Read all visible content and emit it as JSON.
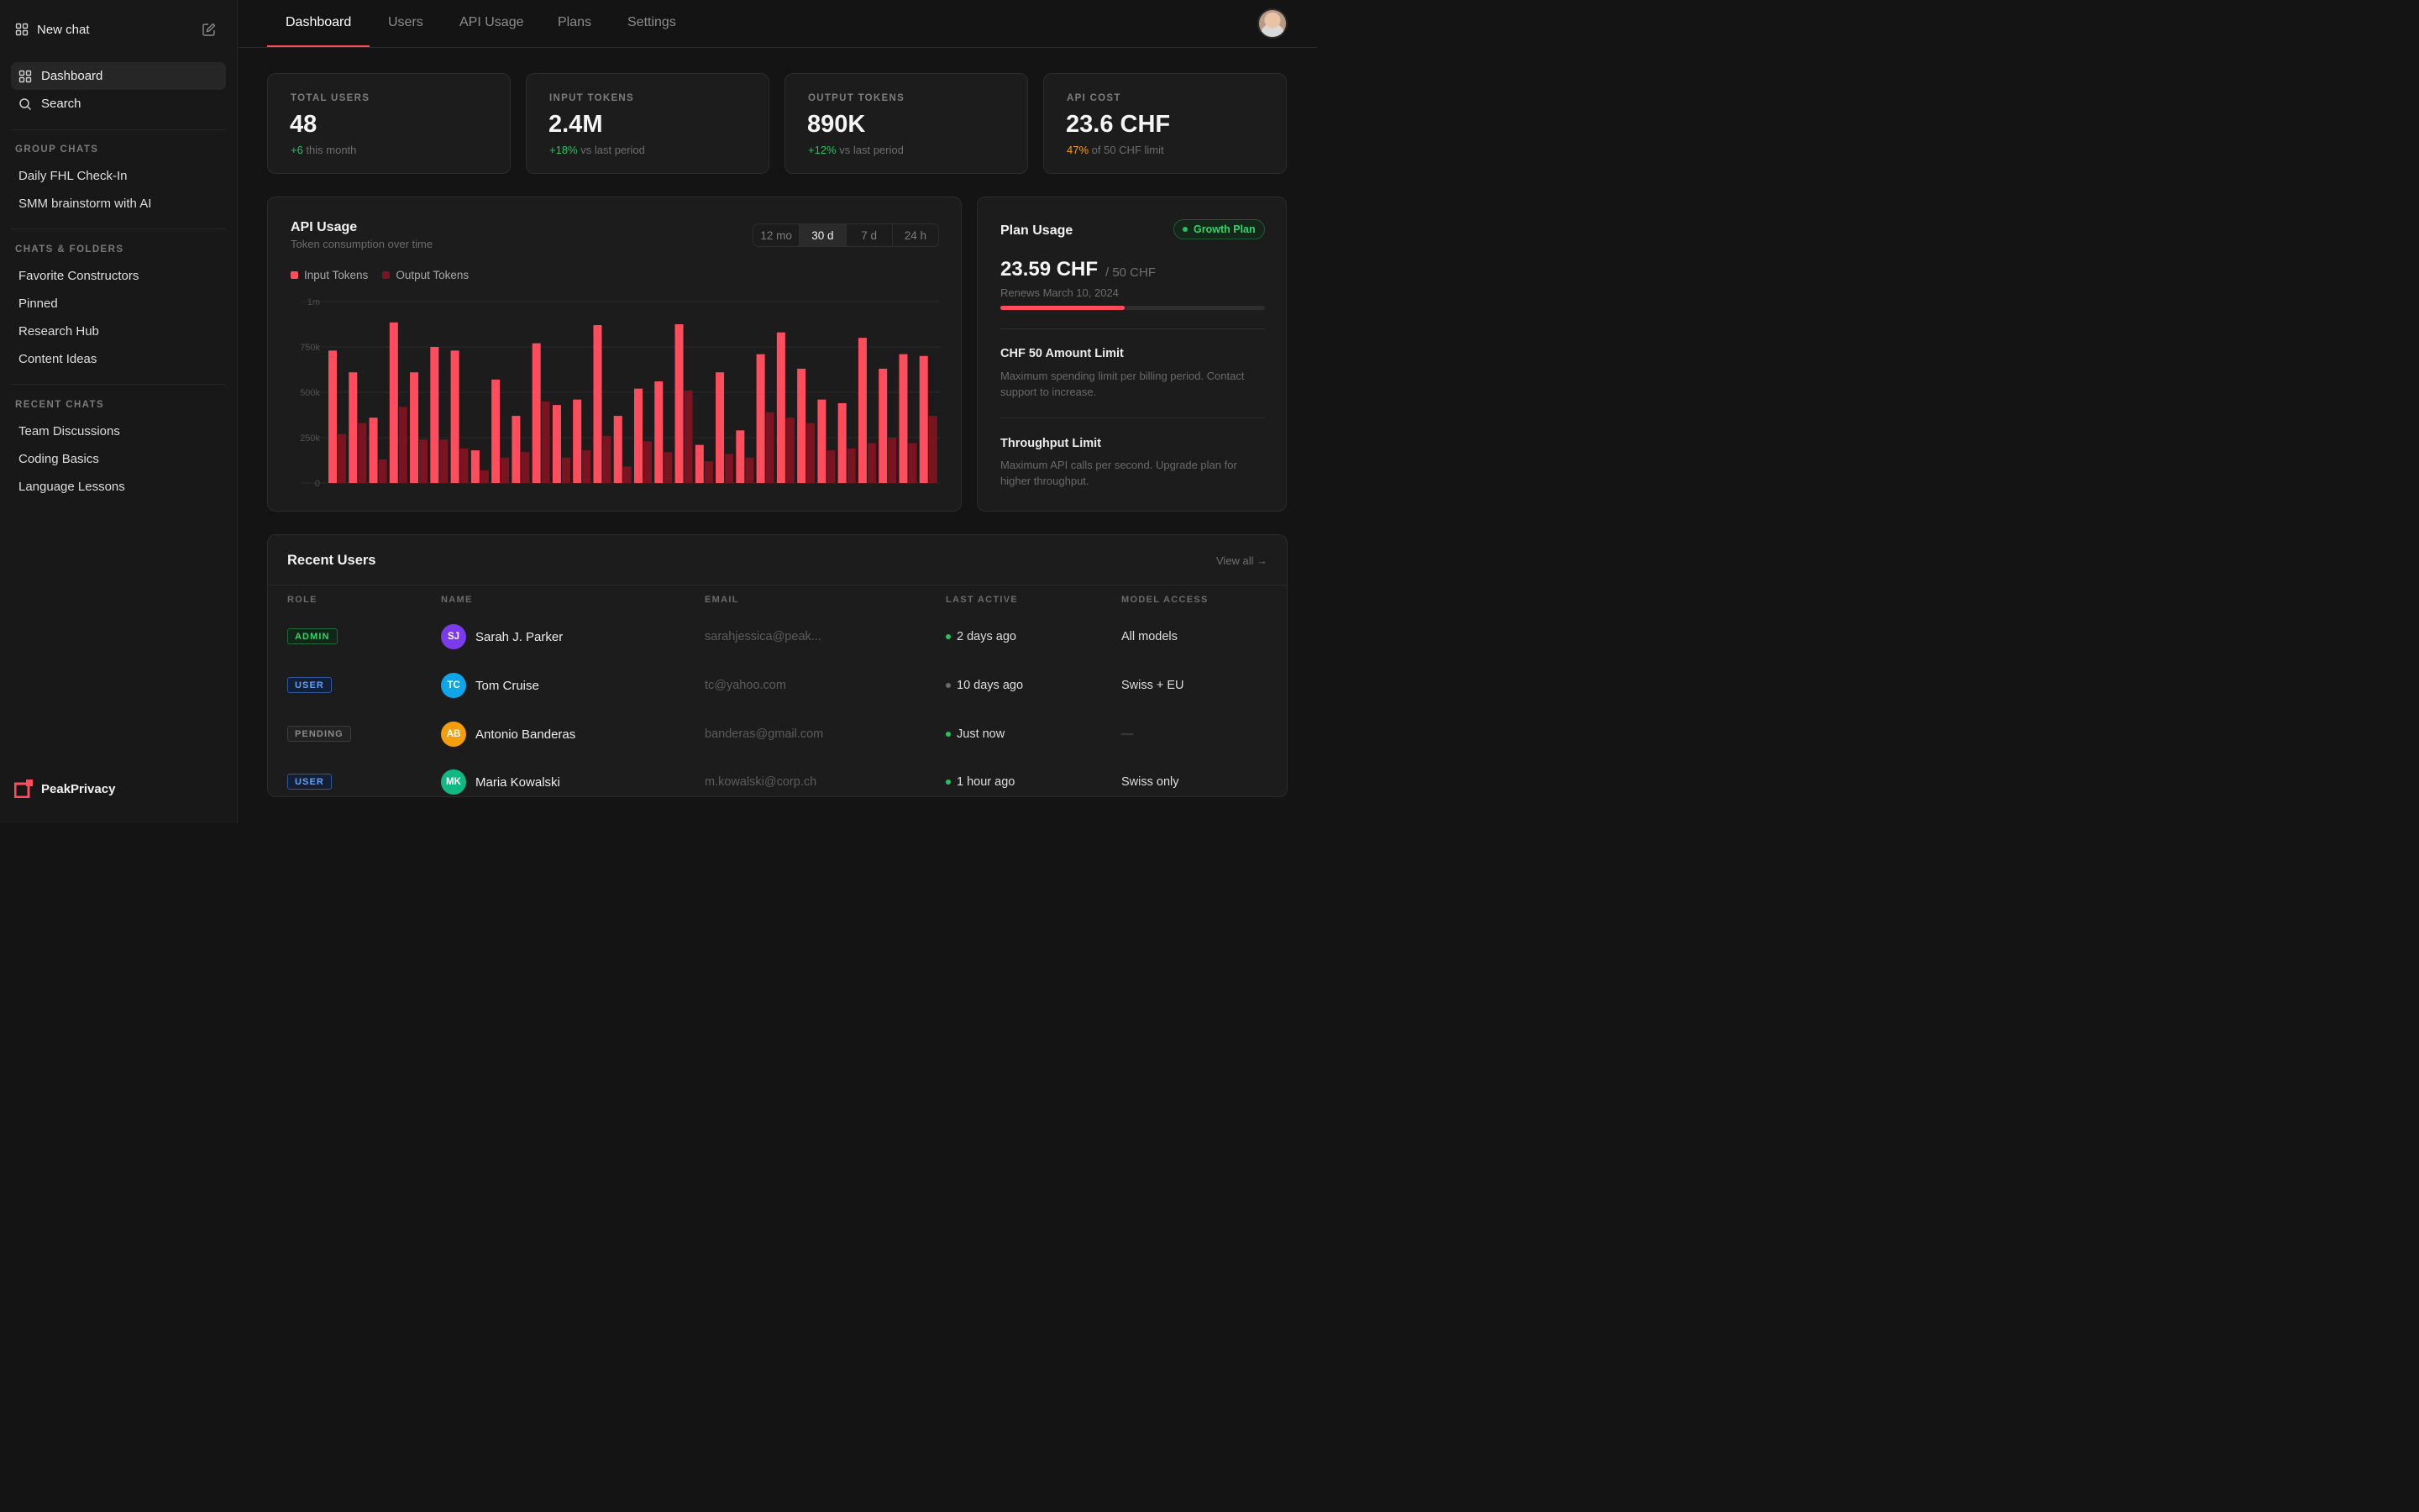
{
  "sidebar": {
    "new_chat": "New chat",
    "nav": [
      {
        "label": "Dashboard",
        "icon": "grid-icon",
        "active": true
      },
      {
        "label": "Search",
        "icon": "search-icon",
        "active": false
      }
    ],
    "sections": [
      {
        "heading": "GROUP CHATS",
        "items": [
          "Daily FHL Check-In",
          "SMM brainstorm with AI"
        ]
      },
      {
        "heading": "CHATS & FOLDERS",
        "items": [
          "Favorite Constructors",
          "Pinned",
          "Research Hub",
          "Content Ideas"
        ]
      },
      {
        "heading": "RECENT CHATS",
        "items": [
          "Team Discussions",
          "Coding Basics",
          "Language Lessons"
        ]
      }
    ],
    "brand": "PeakPrivacy"
  },
  "topnav": {
    "tabs": [
      "Dashboard",
      "Users",
      "API Usage",
      "Plans",
      "Settings"
    ],
    "active_tab": "Dashboard"
  },
  "stats": [
    {
      "label": "TOTAL USERS",
      "value": "48",
      "delta": "+6",
      "delta_text": " this month",
      "tone": "up"
    },
    {
      "label": "INPUT TOKENS",
      "value": "2.4M",
      "delta": "+18%",
      "delta_text": " vs last period",
      "tone": "up"
    },
    {
      "label": "OUTPUT TOKENS",
      "value": "890K",
      "delta": "+12%",
      "delta_text": " vs last period",
      "tone": "up"
    },
    {
      "label": "API COST",
      "value": "23.6 CHF",
      "delta": "47%",
      "delta_text": " of 50 CHF limit",
      "tone": "warn"
    }
  ],
  "usage": {
    "title": "API Usage",
    "subtitle": "Token consumption over time",
    "ranges": [
      "12 mo",
      "30 d",
      "7 d",
      "24 h"
    ],
    "active_range": "30 d"
  },
  "chart_data": {
    "type": "bar",
    "y_ticks": [
      "1m",
      "750k",
      "500k",
      "250k",
      "0"
    ],
    "ylim": [
      0,
      1000000
    ],
    "grid": true,
    "legend": "top-left",
    "colors": {
      "input": "#ff4d5e",
      "output": "#7a1420"
    },
    "series": [
      {
        "name": "Input Tokens",
        "values": [
          730000,
          610000,
          360000,
          885000,
          610000,
          750000,
          730000,
          180000,
          570000,
          370000,
          770000,
          430000,
          460000,
          870000,
          370000,
          520000,
          560000,
          875000,
          210000,
          610000,
          290000,
          710000,
          830000,
          630000,
          460000,
          440000,
          800000,
          630000,
          710000,
          700000
        ]
      },
      {
        "name": "Output Tokens",
        "values": [
          270000,
          330000,
          130000,
          420000,
          240000,
          240000,
          190000,
          70000,
          140000,
          170000,
          450000,
          140000,
          180000,
          260000,
          90000,
          230000,
          170000,
          510000,
          120000,
          160000,
          140000,
          390000,
          360000,
          330000,
          180000,
          190000,
          220000,
          250000,
          220000,
          370000
        ]
      }
    ]
  },
  "plan": {
    "title": "Plan Usage",
    "badge": "Growth Plan",
    "amount": "23.59 CHF",
    "of": "/ 50 CHF",
    "renews": "Renews March 10, 2024",
    "progress_pct": 47,
    "limits": [
      {
        "title": "CHF 50 Amount Limit",
        "desc": "Maximum spending limit per billing period. Contact support to increase."
      },
      {
        "title": "Throughput Limit",
        "desc": "Maximum API calls per second. Upgrade plan for higher throughput."
      }
    ]
  },
  "users": {
    "title": "Recent Users",
    "view_all": "View all →",
    "columns": [
      "ROLE",
      "NAME",
      "EMAIL",
      "LAST ACTIVE",
      "MODEL ACCESS"
    ],
    "rows": [
      {
        "role": "ADMIN",
        "role_class": "admin",
        "initials": "SJ",
        "avatar_color": "#7c3aed",
        "name": "Sarah J. Parker",
        "email": "sarahjessica@peak...",
        "last_active": "2 days ago",
        "active_color": "#22c55e",
        "model": "All models"
      },
      {
        "role": "USER",
        "role_class": "user",
        "initials": "TC",
        "avatar_color": "#0ea5e9",
        "name": "Tom Cruise",
        "email": "tc@yahoo.com",
        "last_active": "10 days ago",
        "active_color": "#6b6b6b",
        "model": "Swiss + EU"
      },
      {
        "role": "PENDING",
        "role_class": "pending",
        "initials": "AB",
        "avatar_color": "#f59e0b",
        "name": "Antonio Banderas",
        "email": "banderas@gmail.com",
        "last_active": "Just now",
        "active_color": "#22c55e",
        "model": "—"
      },
      {
        "role": "USER",
        "role_class": "user",
        "initials": "MK",
        "avatar_color": "#10b981",
        "name": "Maria Kowalski",
        "email": "m.kowalski@corp.ch",
        "last_active": "1 hour ago",
        "active_color": "#22c55e",
        "model": "Swiss only"
      }
    ]
  }
}
